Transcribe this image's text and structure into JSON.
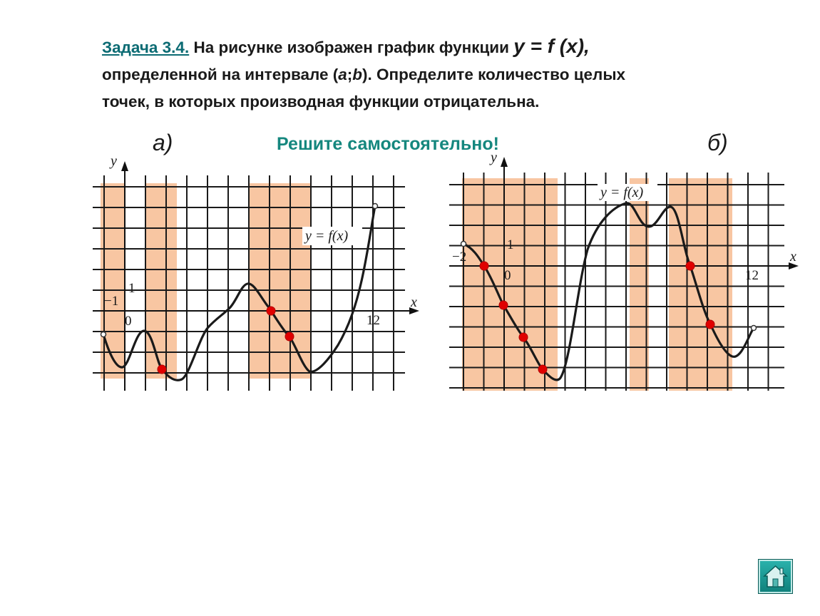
{
  "task": {
    "link": "Задача 3.4.",
    "text1": " На рисунке изображен график функции ",
    "func": "y = f (x),",
    "line2a": "определенной на интервале (",
    "a": "a",
    "semi": ";",
    "b": "b",
    "line2b": "). Определите количество целых",
    "line3": "точек, в которых производная функции отрицательна."
  },
  "labels": {
    "a": "а)",
    "b": "б)",
    "solve": "Решите самостоятельно!"
  },
  "graph_a": {
    "y_axis": "y",
    "x_axis": "x",
    "origin": "0",
    "one_x": "1",
    "one_y": "1",
    "left_end": "−1",
    "x_end": "12",
    "func_label": "y = f(x)"
  },
  "graph_b": {
    "y_axis": "y",
    "x_axis": "x",
    "origin": "0",
    "one_x": "1",
    "left_end": "−2",
    "x_end": "12",
    "func_label": "y = f(x)"
  },
  "colors": {
    "band": "#f6b98e",
    "point": "#e00000",
    "link": "#0b6b73",
    "solve": "#15877e"
  },
  "icons": {
    "home": "home-icon"
  }
}
